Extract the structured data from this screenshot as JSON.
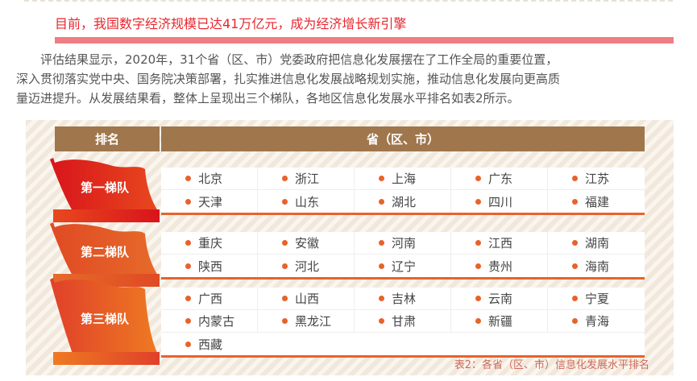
{
  "title": "目前，我国数字经济规模已达41万亿元，成为经济增长新引擎",
  "paragraph": [
    "　　评估结果显示，2020年，31个省（区、市）党委政府把信息化发展摆在了工作全局的重要位置，",
    "深入贯彻落实党中央、国务院决策部署，扎实推进信息化发展战略规划实施，推动信息化发展向更高质",
    "量迈进提升。从发展结果看，整体上呈现出三个梯队，各地区信息化发展水平排名如表2所示。"
  ],
  "table": {
    "headers": [
      "排名",
      "省（区、市）"
    ],
    "tiers": [
      {
        "label": "第一梯队",
        "rows": [
          [
            "北京",
            "浙江",
            "上海",
            "广东",
            "江苏"
          ],
          [
            "天津",
            "山东",
            "湖北",
            "四川",
            "福建"
          ]
        ]
      },
      {
        "label": "第二梯队",
        "rows": [
          [
            "重庆",
            "安徽",
            "河南",
            "江西",
            "湖南"
          ],
          [
            "陕西",
            "河北",
            "辽宁",
            "贵州",
            "海南"
          ]
        ]
      },
      {
        "label": "第三梯队",
        "rows": [
          [
            "广西",
            "山西",
            "吉林",
            "云南",
            "宁夏"
          ],
          [
            "内蒙古",
            "黑龙江",
            "甘肃",
            "新疆",
            "青海"
          ],
          [
            "西藏"
          ]
        ]
      }
    ],
    "caption": "表2：各省（区、市）信息化发展水平排名"
  },
  "colors": {
    "title": "#e8262e",
    "header": "#a0764d",
    "accent": "#e8622a"
  }
}
